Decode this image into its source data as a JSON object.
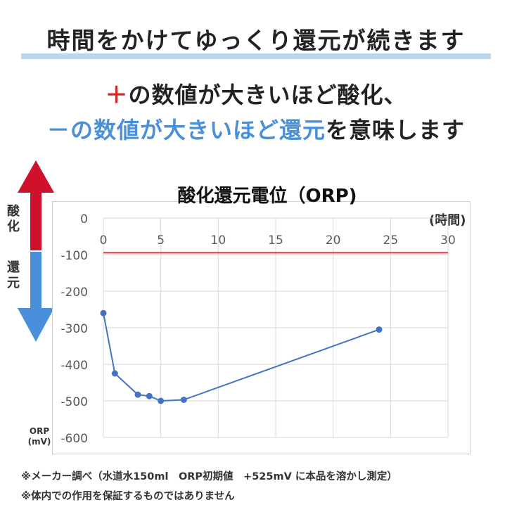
{
  "headline": "時間をかけてゆっくり還元が続きます",
  "subtitle": {
    "line1_sign": "＋",
    "line1_text": "の数値が大きいほど酸化、",
    "line2_blue": "－の数値が大きいほど還元",
    "line2_text": "を意味します"
  },
  "side_labels": {
    "oxidation": "酸化",
    "reduction": "還元"
  },
  "colors": {
    "oxidation_arrow": "#d0112b",
    "reduction_arrow": "#4a8fdb",
    "series": "#4472c4",
    "reference_line": "#e03030",
    "headline_bar": "#bcd6f2"
  },
  "chart_data": {
    "type": "line",
    "title": "酸化還元電位（ORP)",
    "xlabel": "(時間)",
    "ylabel": "ORP\n(mV)",
    "xlim": [
      0,
      30
    ],
    "ylim": [
      -600,
      0
    ],
    "x_ticks": [
      "0",
      "5",
      "10",
      "15",
      "20",
      "25",
      "30"
    ],
    "y_ticks": [
      "0",
      "-100",
      "-200",
      "-300",
      "-400",
      "-500",
      "-600"
    ],
    "x_axis_position": "top",
    "grid": true,
    "reference_line": {
      "y": -95
    },
    "series": [
      {
        "x": [
          0,
          1,
          3,
          4,
          5,
          7,
          24
        ],
        "y": [
          -260,
          -425,
          -483,
          -487,
          -500,
          -497,
          -305
        ]
      }
    ]
  },
  "notes": [
    "※メーカー調べ（水道水150ml　ORP初期値　+525mV に本品を溶かし測定）",
    "※体内での作用を保証するものではありません"
  ]
}
